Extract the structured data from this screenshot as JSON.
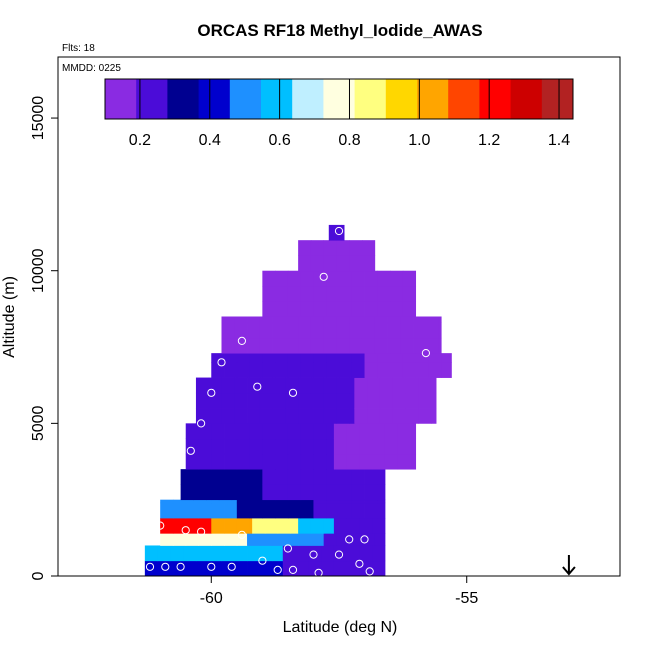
{
  "chart_data": {
    "type": "heatmap",
    "title": "ORCAS RF18 Methyl_Iodide_AWAS",
    "flights_label": "Flts: 18",
    "date_label": "MMDD: 0225",
    "xlabel": "Latitude (deg N)",
    "ylabel": "Altitude (m)",
    "xlim": [
      -63.0,
      -52.0
    ],
    "ylim": [
      0,
      17000
    ],
    "xticks": [
      -60,
      -55
    ],
    "xtick_labels": [
      "-60",
      "-55"
    ],
    "yticks": [
      0,
      5000,
      10000,
      15000
    ],
    "ytick_labels": [
      "0",
      "5000",
      "10000",
      "15000"
    ],
    "colorbar": {
      "range": [
        0.1,
        1.44
      ],
      "ticks": [
        0.2,
        0.4,
        0.6,
        0.8,
        1.0,
        1.2,
        1.4
      ],
      "tick_labels": [
        "0.2",
        "0.4",
        "0.6",
        "0.8",
        "1.0",
        "1.2",
        "1.4"
      ],
      "colors": [
        "#8a2be2",
        "#4b0cd8",
        "#000090",
        "#0000cd",
        "#1e90ff",
        "#00bfff",
        "#bfefff",
        "#ffffe0",
        "#ffff80",
        "#ffd700",
        "#ffa500",
        "#ff4500",
        "#ff0000",
        "#cd0000",
        "#b22222"
      ]
    },
    "cell_size": {
      "dlat": 0.25,
      "dalt": 500
    },
    "cells": [
      {
        "x0": -61.3,
        "x1": -58.6,
        "y0": 0,
        "y1": 500,
        "value": 0.45
      },
      {
        "x0": -58.6,
        "x1": -56.6,
        "y0": 0,
        "y1": 500,
        "value": 0.2
      },
      {
        "x0": -61.3,
        "x1": -58.6,
        "y0": 500,
        "y1": 1000,
        "value": 0.55
      },
      {
        "x0": -58.6,
        "x1": -56.6,
        "y0": 500,
        "y1": 1000,
        "value": 0.2
      },
      {
        "x0": -61.0,
        "x1": -59.3,
        "y0": 1000,
        "y1": 1400,
        "value": 0.75
      },
      {
        "x0": -59.3,
        "x1": -57.8,
        "y0": 1000,
        "y1": 1400,
        "value": 0.5
      },
      {
        "x0": -57.8,
        "x1": -56.6,
        "y0": 1000,
        "y1": 1400,
        "value": 0.2
      },
      {
        "x0": -61.0,
        "x1": -60.0,
        "y0": 1400,
        "y1": 1900,
        "value": 1.25
      },
      {
        "x0": -60.0,
        "x1": -59.2,
        "y0": 1400,
        "y1": 1900,
        "value": 1.0
      },
      {
        "x0": -59.2,
        "x1": -58.3,
        "y0": 1400,
        "y1": 1900,
        "value": 0.85
      },
      {
        "x0": -58.3,
        "x1": -57.6,
        "y0": 1400,
        "y1": 1900,
        "value": 0.55
      },
      {
        "x0": -57.6,
        "x1": -56.6,
        "y0": 1400,
        "y1": 1900,
        "value": 0.2
      },
      {
        "x0": -61.0,
        "x1": -59.5,
        "y0": 1900,
        "y1": 2500,
        "value": 0.5
      },
      {
        "x0": -59.5,
        "x1": -58.0,
        "y0": 1900,
        "y1": 2500,
        "value": 0.35
      },
      {
        "x0": -58.0,
        "x1": -56.6,
        "y0": 1900,
        "y1": 2500,
        "value": 0.2
      },
      {
        "x0": -60.6,
        "x1": -59.0,
        "y0": 2500,
        "y1": 3500,
        "value": 0.3
      },
      {
        "x0": -59.0,
        "x1": -56.6,
        "y0": 2500,
        "y1": 3500,
        "value": 0.2
      },
      {
        "x0": -60.5,
        "x1": -57.6,
        "y0": 3500,
        "y1": 5000,
        "value": 0.22
      },
      {
        "x0": -57.6,
        "x1": -56.0,
        "y0": 3500,
        "y1": 5000,
        "value": 0.15
      },
      {
        "x0": -60.3,
        "x1": -57.2,
        "y0": 5000,
        "y1": 6500,
        "value": 0.22
      },
      {
        "x0": -57.2,
        "x1": -55.6,
        "y0": 5000,
        "y1": 6500,
        "value": 0.15
      },
      {
        "x0": -60.0,
        "x1": -57.0,
        "y0": 6500,
        "y1": 7300,
        "value": 0.2
      },
      {
        "x0": -57.0,
        "x1": -55.3,
        "y0": 6500,
        "y1": 7300,
        "value": 0.15
      },
      {
        "x0": -59.8,
        "x1": -55.5,
        "y0": 7300,
        "y1": 8500,
        "value": 0.13
      },
      {
        "x0": -59.0,
        "x1": -56.0,
        "y0": 8500,
        "y1": 10000,
        "value": 0.13
      },
      {
        "x0": -58.3,
        "x1": -56.8,
        "y0": 10000,
        "y1": 11000,
        "value": 0.18
      },
      {
        "x0": -57.7,
        "x1": -57.4,
        "y0": 11000,
        "y1": 11500,
        "value": 0.2
      }
    ],
    "samples": [
      {
        "lat": -61.2,
        "alt": 300,
        "value": 0.4
      },
      {
        "lat": -60.9,
        "alt": 300,
        "value": 0.45
      },
      {
        "lat": -60.6,
        "alt": 300,
        "value": 0.5
      },
      {
        "lat": -60.0,
        "alt": 300,
        "value": 0.3
      },
      {
        "lat": -59.6,
        "alt": 300,
        "value": 0.25
      },
      {
        "lat": -59.0,
        "alt": 500,
        "value": 0.2
      },
      {
        "lat": -58.7,
        "alt": 200,
        "value": 0.2
      },
      {
        "lat": -58.4,
        "alt": 200,
        "value": 0.2
      },
      {
        "lat": -57.9,
        "alt": 100,
        "value": 0.2
      },
      {
        "lat": -57.1,
        "alt": 400,
        "value": 0.2
      },
      {
        "lat": -56.9,
        "alt": 150,
        "value": 0.2
      },
      {
        "lat": -61.0,
        "alt": 1650,
        "value": 1.3
      },
      {
        "lat": -60.5,
        "alt": 1500,
        "value": 1.1
      },
      {
        "lat": -60.2,
        "alt": 1450,
        "value": 0.9
      },
      {
        "lat": -59.4,
        "alt": 1350,
        "value": 0.6
      },
      {
        "lat": -58.5,
        "alt": 900,
        "value": 0.4
      },
      {
        "lat": -58.0,
        "alt": 700,
        "value": 0.3
      },
      {
        "lat": -57.5,
        "alt": 700,
        "value": 0.2
      },
      {
        "lat": -57.3,
        "alt": 1200,
        "value": 0.2
      },
      {
        "lat": -57.0,
        "alt": 1200,
        "value": 0.2
      },
      {
        "lat": -56.3,
        "alt": 1500,
        "value": 0.2
      },
      {
        "lat": -60.8,
        "alt": 3250,
        "value": 0.3
      },
      {
        "lat": -60.4,
        "alt": 4100,
        "value": 0.25
      },
      {
        "lat": -60.2,
        "alt": 5000,
        "value": 0.22
      },
      {
        "lat": -60.0,
        "alt": 6000,
        "value": 0.2
      },
      {
        "lat": -59.1,
        "alt": 6200,
        "value": 0.2
      },
      {
        "lat": -58.4,
        "alt": 6000,
        "value": 0.2
      },
      {
        "lat": -59.8,
        "alt": 7000,
        "value": 0.15
      },
      {
        "lat": -59.4,
        "alt": 7700,
        "value": 0.13
      },
      {
        "lat": -55.8,
        "alt": 7300,
        "value": 0.13
      },
      {
        "lat": -55.2,
        "alt": 7100,
        "value": 0.13
      },
      {
        "lat": -57.8,
        "alt": 9800,
        "value": 0.15
      },
      {
        "lat": -57.5,
        "alt": 11300,
        "value": 0.2
      }
    ],
    "arrow_marker": {
      "lat": -53.0,
      "alt": 0
    }
  }
}
